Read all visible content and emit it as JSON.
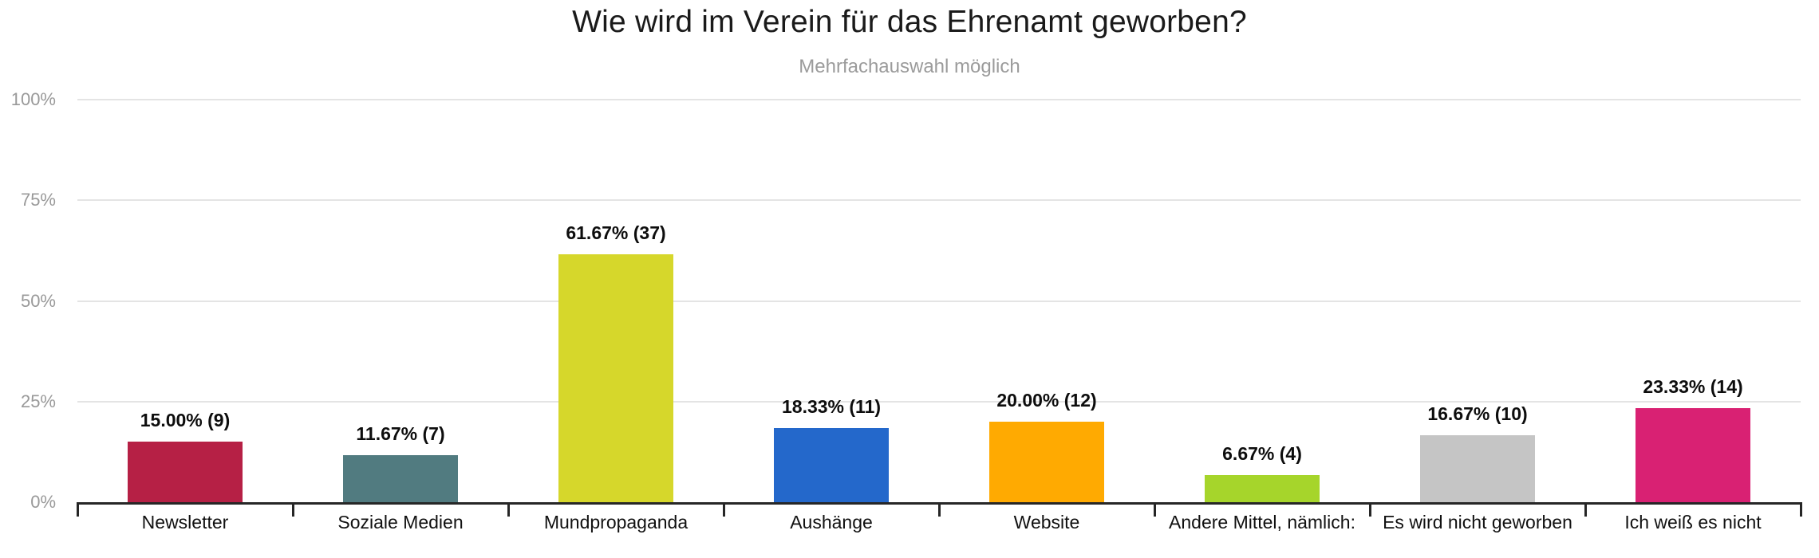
{
  "header": {
    "title": "Wie wird im Verein für das Ehrenamt geworben?",
    "subtitle": "Mehrfachauswahl möglich"
  },
  "chart_data": {
    "type": "bar",
    "title": "Wie wird im Verein für das Ehrenamt geworben?",
    "subtitle": "Mehrfachauswahl möglich",
    "categories": [
      "Newsletter",
      "Soziale Medien",
      "Mundpropaganda",
      "Aushänge",
      "Website",
      "Andere Mittel, nämlich:",
      "Es wird nicht geworben",
      "Ich weiß es nicht"
    ],
    "values_percent": [
      15.0,
      11.67,
      61.67,
      18.33,
      20.0,
      6.67,
      16.67,
      23.33
    ],
    "counts": [
      9,
      7,
      37,
      11,
      12,
      4,
      10,
      14
    ],
    "bar_labels": [
      "15.00% (9)",
      "11.67% (7)",
      "61.67% (37)",
      "18.33% (11)",
      "20.00% (12)",
      "6.67% (4)",
      "16.67% (10)",
      "23.33% (14)"
    ],
    "bar_colors": [
      "#b62045",
      "#517b80",
      "#d6d72b",
      "#2468cb",
      "#ffaa01",
      "#a6d52b",
      "#c5c5c5",
      "#d92173"
    ],
    "y_tick_labels": [
      "0%",
      "25%",
      "50%",
      "75%",
      "100%"
    ],
    "y_tick_values": [
      0,
      25,
      50,
      75,
      100
    ],
    "ylim": [
      0,
      100
    ],
    "xlabel": "",
    "ylabel": "",
    "grid": true,
    "legend": false,
    "gridline_color": "#e4e4e4",
    "axis_color": "#262626",
    "y_label_color": "#999999"
  }
}
